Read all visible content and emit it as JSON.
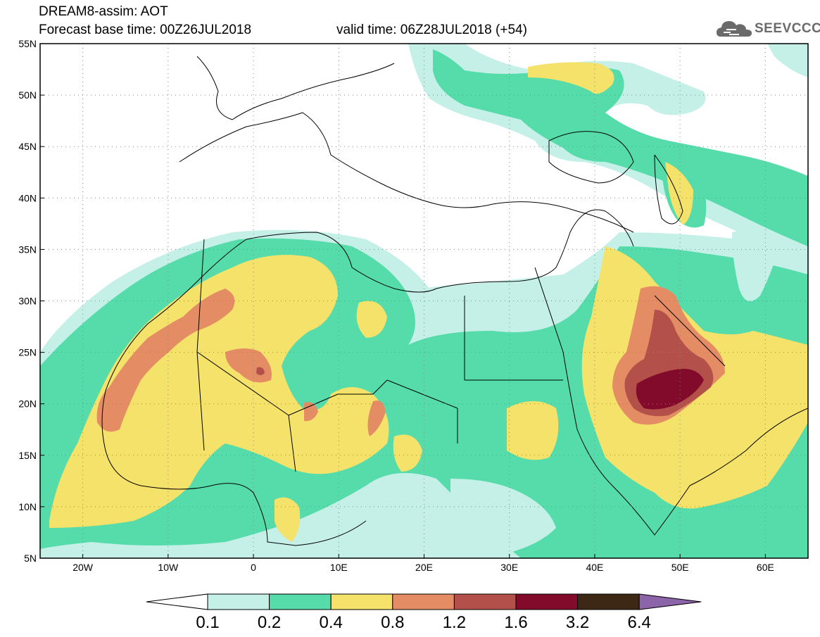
{
  "header": {
    "title": "DREAM8-assim: AOT",
    "base_time": "Forecast base time: 00Z26JUL2018",
    "valid_time": "valid time: 06Z28JUL2018 (+54)",
    "logo_text": "SEEVCCC"
  },
  "map": {
    "lon_range": [
      -25,
      65
    ],
    "lat_range": [
      5,
      55
    ],
    "lat_labels": [
      "55N",
      "50N",
      "45N",
      "40N",
      "35N",
      "30N",
      "25N",
      "20N",
      "15N",
      "10N",
      "5N"
    ],
    "lat_values": [
      55,
      50,
      45,
      40,
      35,
      30,
      25,
      20,
      15,
      10,
      5
    ],
    "lon_labels": [
      "20W",
      "10W",
      "0",
      "10E",
      "20E",
      "30E",
      "40E",
      "50E",
      "60E"
    ],
    "lon_values": [
      -20,
      -10,
      0,
      10,
      20,
      30,
      40,
      50,
      60
    ]
  },
  "colorbar": {
    "colors": [
      "#c4f0e8",
      "#56dcaa",
      "#f5e26a",
      "#e48c64",
      "#b4504a",
      "#820b2c",
      "#3c2814",
      "#8c64aa"
    ],
    "labels": [
      "0.1",
      "0.2",
      "0.4",
      "0.8",
      "1.2",
      "1.6",
      "3.2",
      "6.4"
    ]
  }
}
